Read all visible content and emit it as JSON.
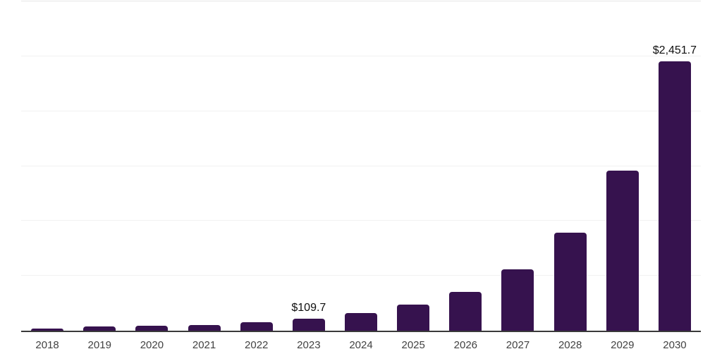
{
  "chart_data": {
    "type": "bar",
    "title": "",
    "xlabel": "",
    "ylabel": "",
    "categories": [
      "2018",
      "2019",
      "2020",
      "2021",
      "2022",
      "2023",
      "2024",
      "2025",
      "2026",
      "2027",
      "2028",
      "2029",
      "2030"
    ],
    "values": [
      22,
      36,
      44,
      54,
      75,
      109.7,
      158,
      238,
      352,
      558,
      893,
      1456,
      2451.7
    ],
    "bar_labels": [
      "",
      "",
      "",
      "",
      "",
      "$109.7",
      "",
      "",
      "",
      "",
      "",
      "",
      "$2,451.7"
    ],
    "ylim": [
      0,
      3000
    ],
    "gridline_step": 500,
    "grid": true,
    "legend_position": "none",
    "y_tick_labels_visible": false,
    "colors": {
      "bar": "#36124E",
      "axis_line": "#3A3A3A",
      "gridline": "#F1F1F1",
      "top_gridline": "#E7E7E7",
      "data_label": "#0F0F0F",
      "x_tick_label": "#424242",
      "background": "#FFFFFF"
    }
  }
}
